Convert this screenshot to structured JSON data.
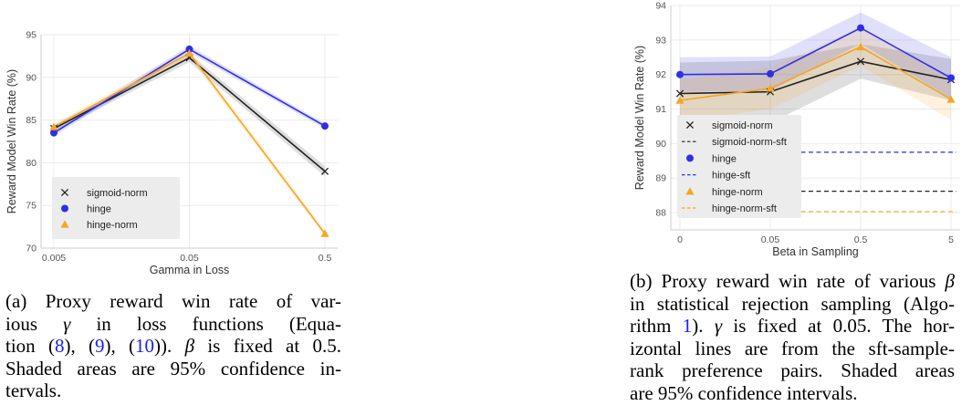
{
  "colors": {
    "sigmoid": "#222222",
    "hinge": "#2f2fe6",
    "hinge_norm": "#f5a623",
    "grid": "#ebebeb",
    "legend_bg": "#ececec"
  },
  "chart_data": [
    {
      "type": "line",
      "xlabel": "Gamma in Loss",
      "ylabel": "Reward Model Win Rate (%)",
      "categories": [
        "0.005",
        "0.05",
        "0.5"
      ],
      "ylim": [
        70,
        95
      ],
      "yticks": [
        70,
        75,
        80,
        85,
        90,
        95
      ],
      "grid": true,
      "legend_position": "lower-left",
      "series": [
        {
          "name": "sigmoid-norm",
          "marker": "x",
          "color": "#222222",
          "values": [
            84.0,
            92.3,
            79.0
          ],
          "ci": [
            0.4,
            0.5,
            0.6
          ]
        },
        {
          "name": "hinge",
          "marker": "circle",
          "color": "#2f2fe6",
          "values": [
            83.5,
            93.3,
            84.3
          ],
          "ci": [
            0.4,
            0.4,
            0.3
          ]
        },
        {
          "name": "hinge-norm",
          "marker": "triangle",
          "color": "#f5a623",
          "values": [
            84.2,
            92.8,
            71.7
          ],
          "ci": [
            0.4,
            0.5,
            0.4
          ]
        }
      ]
    },
    {
      "type": "line",
      "xlabel": "Beta in Sampling",
      "ylabel": "Reward Model Win Rate (%)",
      "categories": [
        "0",
        "0.05",
        "0.5",
        "5"
      ],
      "ylim": [
        87.5,
        94
      ],
      "yticks": [
        88,
        89,
        90,
        91,
        92,
        93,
        94
      ],
      "grid": true,
      "legend_position": "lower-left",
      "series": [
        {
          "name": "sigmoid-norm",
          "marker": "x",
          "color": "#222222",
          "values": [
            91.45,
            91.5,
            92.38,
            91.85
          ],
          "ci": [
            0.9,
            0.9,
            0.5,
            0.6
          ]
        },
        {
          "name": "hinge",
          "marker": "circle",
          "color": "#2f2fe6",
          "values": [
            92.0,
            92.02,
            93.35,
            91.9
          ],
          "ci": [
            0.5,
            0.5,
            0.45,
            0.6
          ]
        },
        {
          "name": "hinge-norm",
          "marker": "triangle",
          "color": "#f5a623",
          "values": [
            91.25,
            91.6,
            92.8,
            91.28
          ],
          "ci": [
            0.6,
            0.6,
            0.55,
            0.6
          ]
        }
      ],
      "hlines": [
        {
          "name": "sigmoid-norm-sft",
          "color": "#222222",
          "value": 88.62
        },
        {
          "name": "hinge-sft",
          "color": "#2f2fe6",
          "value": 89.75
        },
        {
          "name": "hinge-norm-sft",
          "color": "#f5a623",
          "value": 88.03
        }
      ]
    }
  ],
  "captions": {
    "a": {
      "lines": [
        {
          "parts": [
            {
              "t": "(a) Proxy reward win rate of var-"
            }
          ]
        },
        {
          "parts": [
            {
              "t": "ious "
            },
            {
              "t": "γ",
              "i": true
            },
            {
              "t": " in loss functions (Equa-"
            }
          ]
        },
        {
          "parts": [
            {
              "t": "tion ("
            },
            {
              "t": "8",
              "ref": true
            },
            {
              "t": "), ("
            },
            {
              "t": "9",
              "ref": true
            },
            {
              "t": "), ("
            },
            {
              "t": "10",
              "ref": true
            },
            {
              "t": "))."
            },
            {
              "t": "  "
            },
            {
              "t": "β",
              "i": true
            },
            {
              "t": " is fixed at 0.5."
            }
          ]
        },
        {
          "parts": [
            {
              "t": "Shaded areas are 95% confidence in-"
            }
          ]
        },
        {
          "parts": [
            {
              "t": "tervals."
            }
          ],
          "last": true
        }
      ]
    },
    "b": {
      "lines": [
        {
          "parts": [
            {
              "t": "(b) Proxy reward win rate of various "
            },
            {
              "t": "β",
              "i": true
            }
          ]
        },
        {
          "parts": [
            {
              "t": "in statistical rejection sampling (Algo-"
            }
          ]
        },
        {
          "parts": [
            {
              "t": "rithm "
            },
            {
              "t": "1",
              "ref": true
            },
            {
              "t": ")."
            },
            {
              "t": "  "
            },
            {
              "t": "γ",
              "i": true
            },
            {
              "t": " is fixed at 0.05. The hor-"
            }
          ]
        },
        {
          "parts": [
            {
              "t": "izontal lines are from the sft-sample-"
            }
          ]
        },
        {
          "parts": [
            {
              "t": "rank preference pairs.  Shaded areas"
            }
          ]
        },
        {
          "parts": [
            {
              "t": "are 95% confidence intervals."
            }
          ],
          "last": true
        }
      ]
    }
  }
}
